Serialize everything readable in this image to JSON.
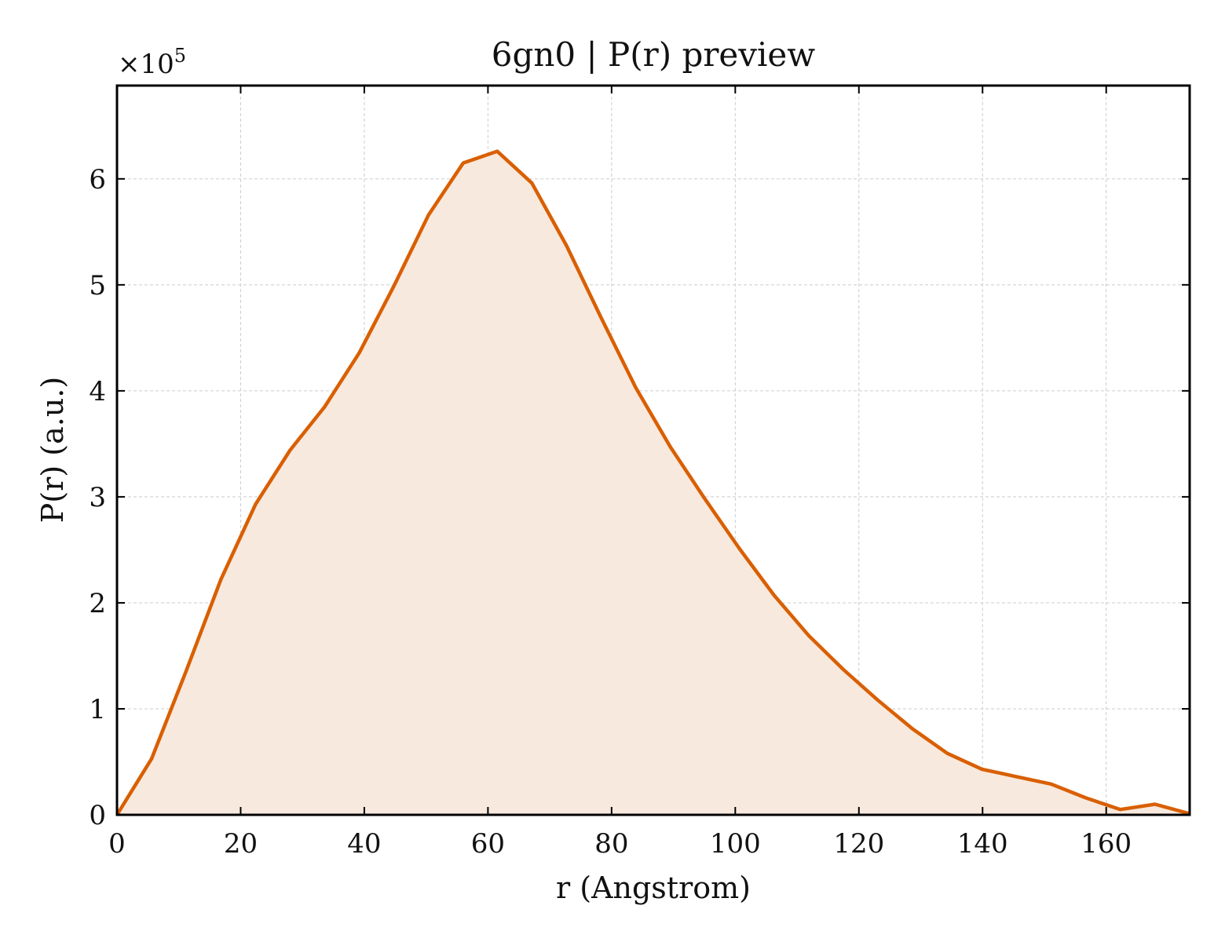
{
  "chart_data": {
    "type": "area",
    "title": "6gn0 | P(r) preview",
    "xlabel": "r (Angstrom)",
    "ylabel": "P(r) (a.u.)",
    "y_multiplier_base": "×10",
    "y_multiplier_exp": "5",
    "xlim": [
      0,
      173.5
    ],
    "ylim": [
      0,
      6.88
    ],
    "xticks": [
      0,
      20,
      40,
      60,
      80,
      100,
      120,
      140,
      160
    ],
    "yticks": [
      0,
      1,
      2,
      3,
      4,
      5,
      6
    ],
    "grid": true,
    "line_color": "#d95f02",
    "fill_color": "#f8e9de",
    "x": [
      0,
      5.6,
      11.2,
      16.8,
      22.4,
      28.0,
      33.6,
      39.2,
      44.8,
      50.4,
      56.0,
      61.5,
      67.1,
      72.7,
      78.3,
      83.9,
      89.5,
      95.1,
      100.7,
      106.3,
      111.9,
      117.5,
      123.1,
      128.7,
      134.3,
      139.9,
      145.5,
      151.1,
      156.7,
      162.3,
      167.9,
      173.5
    ],
    "y": [
      0.0,
      0.53,
      1.36,
      2.22,
      2.93,
      3.44,
      3.85,
      4.36,
      4.99,
      5.66,
      6.15,
      6.26,
      5.96,
      5.37,
      4.69,
      4.03,
      3.47,
      2.98,
      2.51,
      2.07,
      1.69,
      1.37,
      1.08,
      0.81,
      0.58,
      0.43,
      0.36,
      0.29,
      0.16,
      0.05,
      0.1,
      0.01
    ]
  }
}
